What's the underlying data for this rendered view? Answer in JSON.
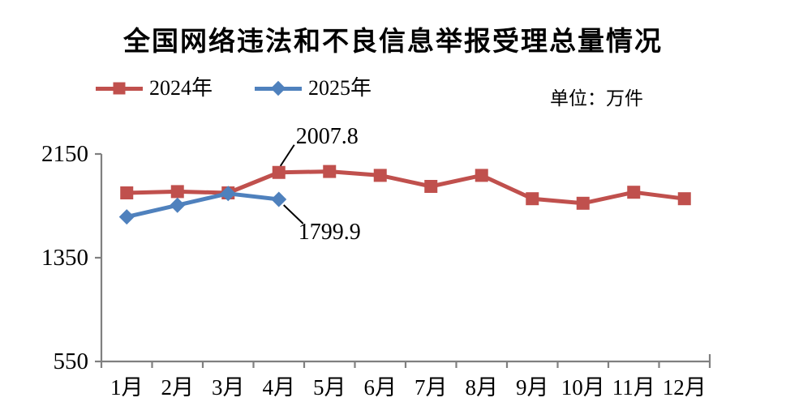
{
  "title": "全国网络违法和不良信息举报受理总量情况",
  "unit_label": "单位：万件",
  "colors": {
    "series_2024": "#C0504D",
    "series_2025": "#4F81BD",
    "axis": "#808080",
    "text": "#000000"
  },
  "chart_data": {
    "type": "line",
    "title": "全国网络违法和不良信息举报受理总量情况",
    "unit_label": "单位：万件",
    "categories": [
      "1月",
      "2月",
      "3月",
      "4月",
      "5月",
      "6月",
      "7月",
      "8月",
      "9月",
      "10月",
      "11月",
      "12月"
    ],
    "series": [
      {
        "name": "2024年",
        "color": "#C0504D",
        "marker": "square",
        "values": [
          1850,
          1860,
          1850,
          2007.8,
          2015,
          1985,
          1900,
          1985,
          1805,
          1770,
          1855,
          1805
        ]
      },
      {
        "name": "2025年",
        "color": "#4F81BD",
        "marker": "diamond",
        "values": [
          1665,
          1755,
          1845,
          1799.9
        ]
      }
    ],
    "y_axis": {
      "min": 550,
      "max": 2150,
      "ticks": [
        2150,
        1350,
        550
      ]
    },
    "x_axis": {
      "label": "",
      "tick_style": "outside-boundaries"
    },
    "grid": false,
    "legend_position": "top-left",
    "annotations": [
      {
        "series_index": 0,
        "point_index": 3,
        "label": "2007.8",
        "placement": "above-right"
      },
      {
        "series_index": 1,
        "point_index": 3,
        "label": "1799.9",
        "placement": "below-right"
      }
    ]
  }
}
